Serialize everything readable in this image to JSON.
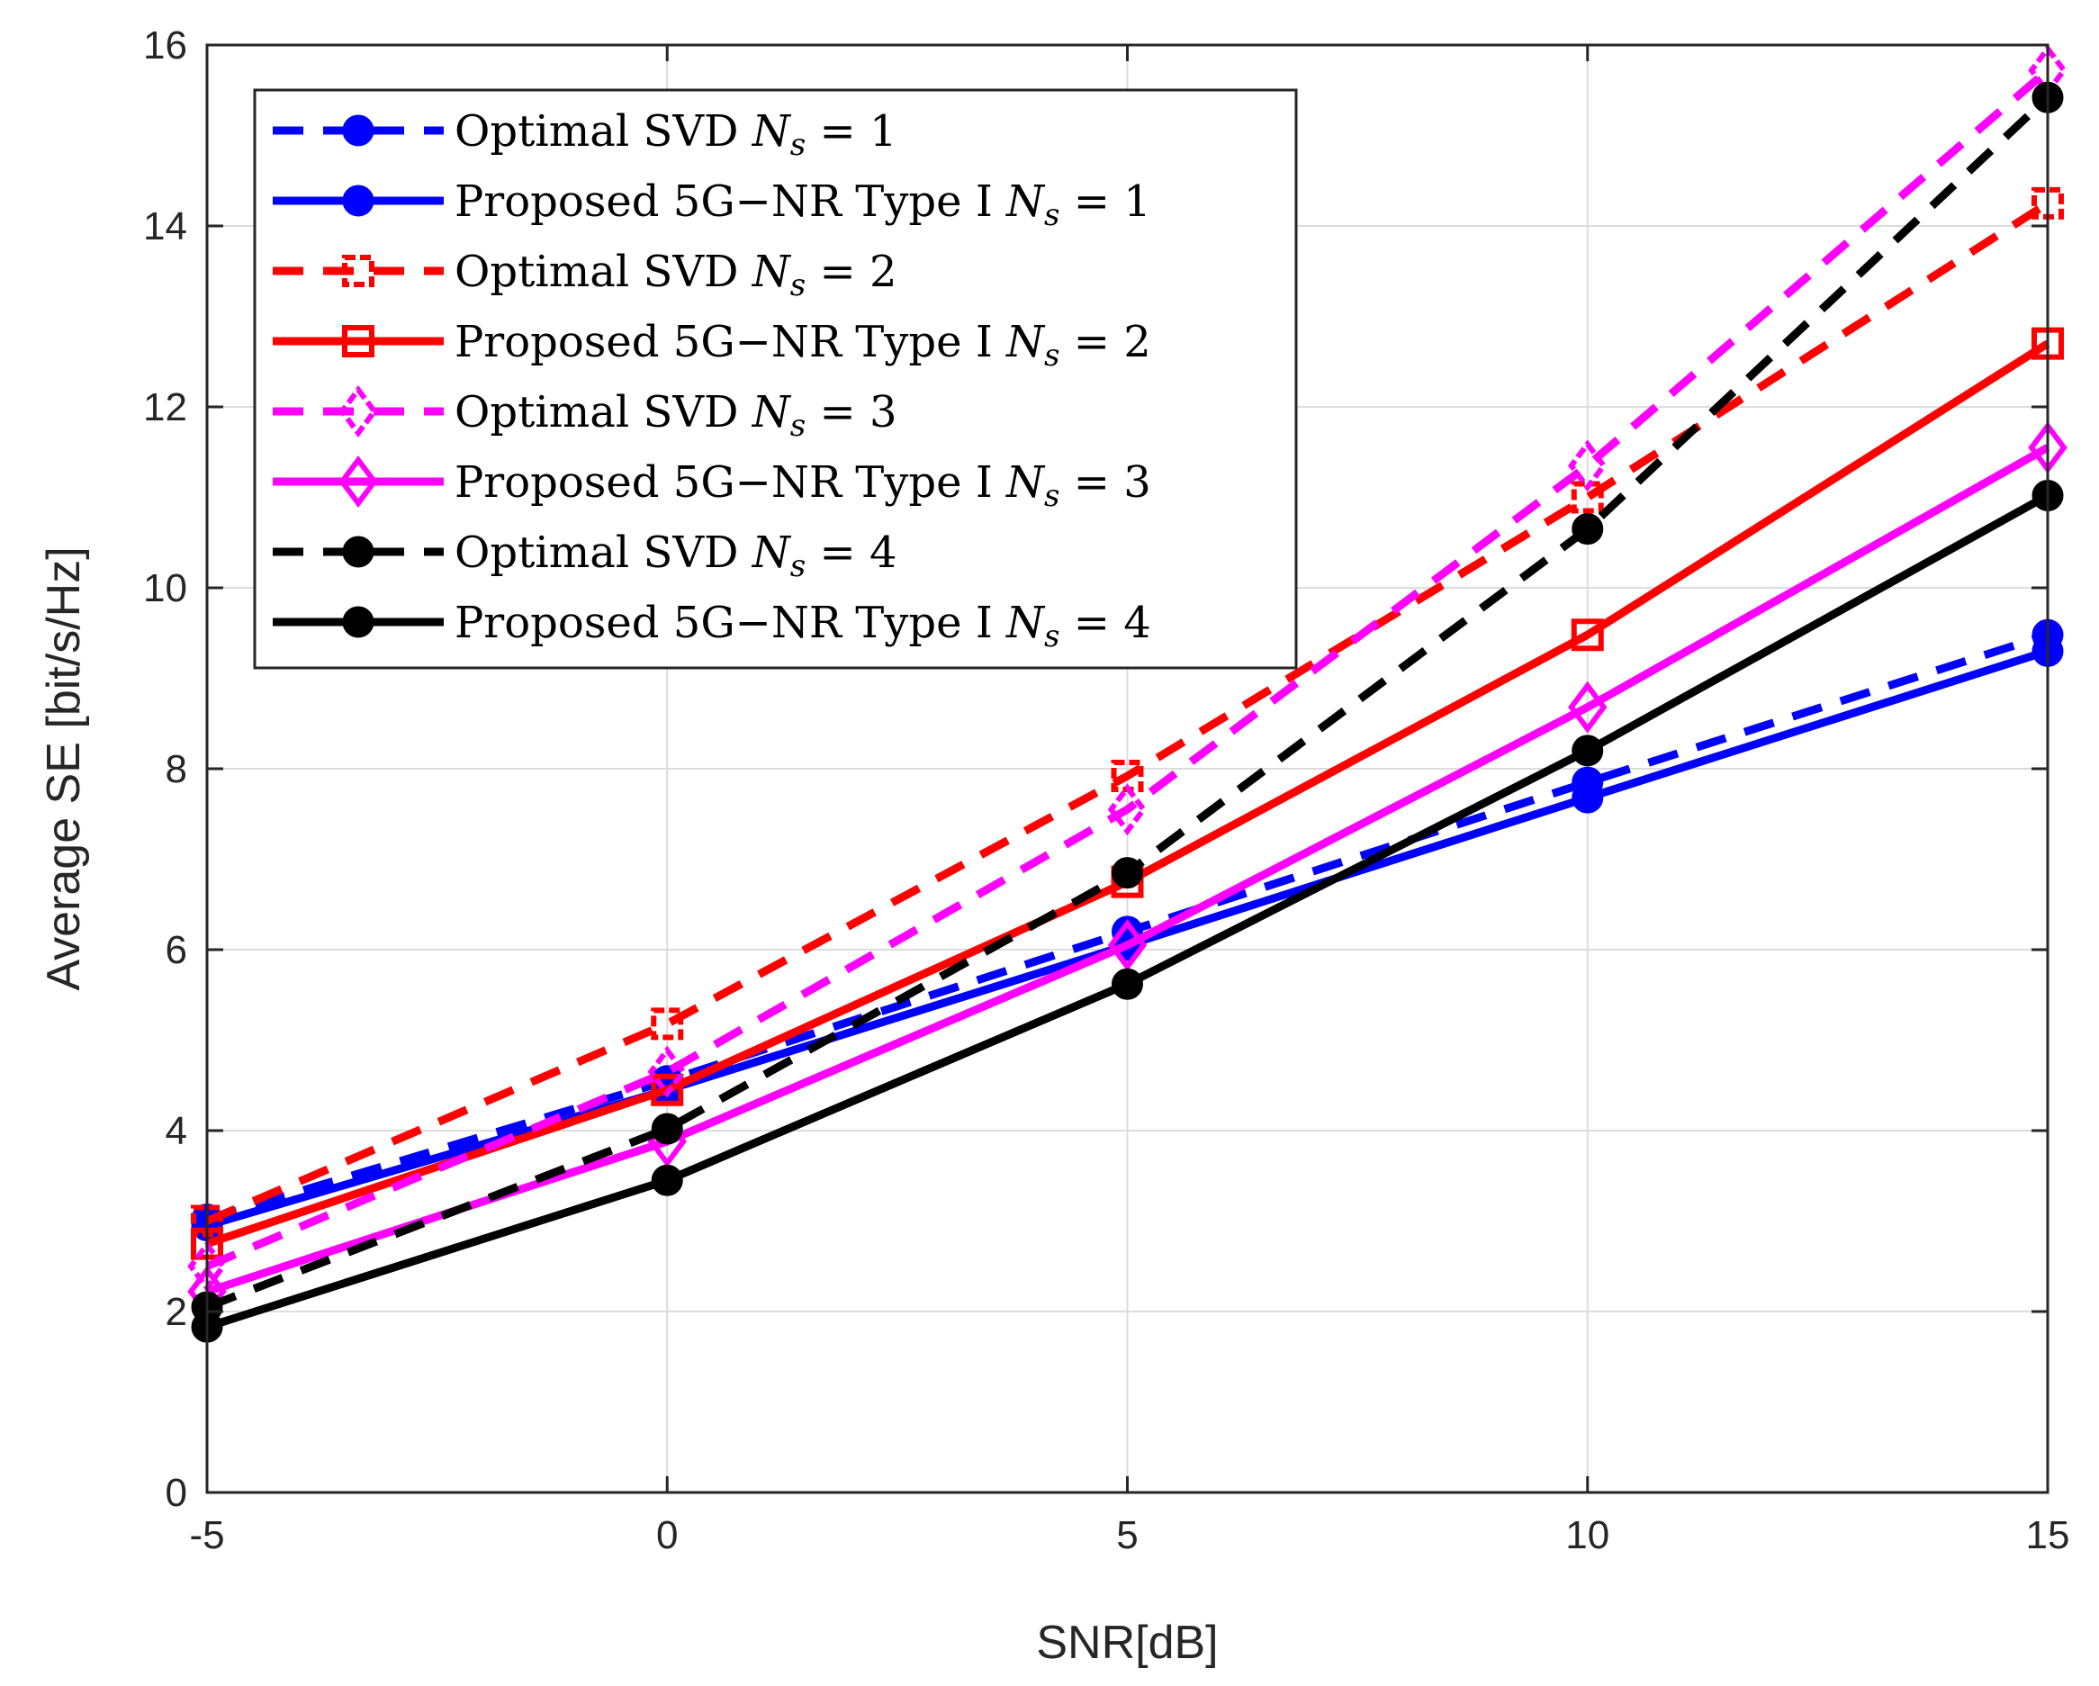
{
  "chart_data": {
    "type": "line",
    "title": "",
    "xlabel": "SNR[dB]",
    "ylabel": "Average SE [bit/s/Hz]",
    "x": [
      -5,
      0,
      5,
      10,
      15
    ],
    "xlim": [
      -5,
      15
    ],
    "ylim": [
      0,
      16
    ],
    "xticks": [
      -5,
      0,
      5,
      10,
      15
    ],
    "yticks": [
      0,
      2,
      4,
      6,
      8,
      10,
      12,
      14,
      16
    ],
    "grid": true,
    "legend_position": "top-left",
    "series": [
      {
        "name": "Optimal SVD",
        "ns": "1",
        "color": "#0000ff",
        "dashed": true,
        "marker": "circle",
        "values": [
          3.02,
          4.55,
          6.2,
          7.85,
          9.48
        ]
      },
      {
        "name": "Proposed 5G−NR Type I",
        "ns": "1",
        "color": "#0000ff",
        "dashed": false,
        "marker": "circle",
        "values": [
          2.95,
          4.45,
          6.05,
          7.68,
          9.3
        ]
      },
      {
        "name": "Optimal SVD",
        "ns": "2",
        "color": "#ff0000",
        "dashed": true,
        "marker": "square",
        "values": [
          3.0,
          5.18,
          7.92,
          11.0,
          14.25
        ]
      },
      {
        "name": "Proposed 5G−NR Type I",
        "ns": "2",
        "color": "#ff0000",
        "dashed": false,
        "marker": "square",
        "values": [
          2.75,
          4.45,
          6.75,
          9.48,
          12.7
        ]
      },
      {
        "name": "Optimal SVD",
        "ns": "3",
        "color": "#ff00ff",
        "dashed": true,
        "marker": "diamond",
        "values": [
          2.5,
          4.65,
          7.55,
          11.35,
          15.72
        ]
      },
      {
        "name": "Proposed 5G−NR Type I",
        "ns": "3",
        "color": "#ff00ff",
        "dashed": false,
        "marker": "diamond",
        "values": [
          2.22,
          3.88,
          6.05,
          8.68,
          11.55
        ]
      },
      {
        "name": "Optimal SVD",
        "ns": "4",
        "color": "#000000",
        "dashed": true,
        "marker": "circle",
        "values": [
          2.05,
          4.02,
          6.85,
          10.65,
          15.42
        ]
      },
      {
        "name": "Proposed 5G−NR Type I",
        "ns": "4",
        "color": "#000000",
        "dashed": false,
        "marker": "circle",
        "values": [
          1.83,
          3.45,
          5.62,
          8.2,
          11.02
        ]
      }
    ]
  }
}
